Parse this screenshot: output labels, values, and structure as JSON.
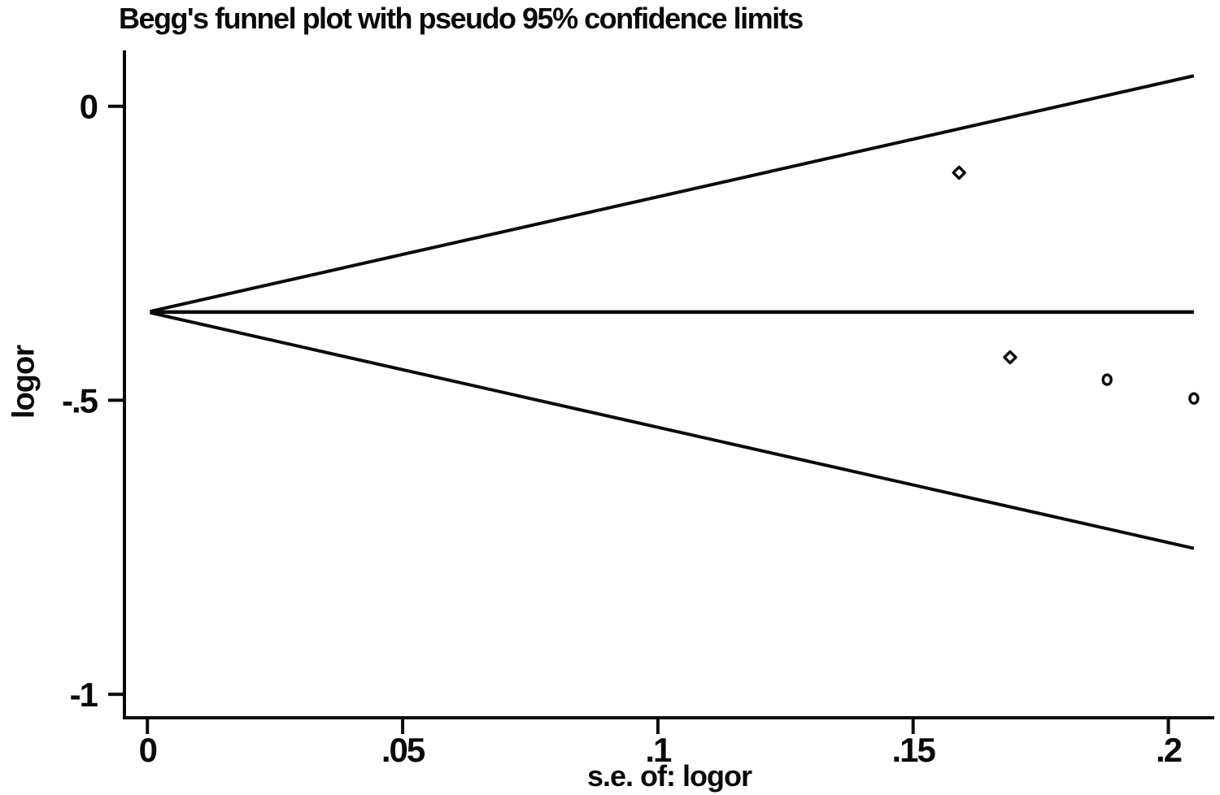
{
  "colors": {
    "foreground": "#0a0a0a",
    "background": "#ffffff"
  },
  "chart_data": {
    "type": "scatter",
    "title": "Begg's funnel plot with pseudo 95% confidence limits",
    "xlabel": "s.e. of: logor",
    "ylabel": "logor",
    "xlim": [
      -0.0045,
      0.209
    ],
    "ylim": [
      -1.04,
      0.095
    ],
    "x_ticks": [
      0,
      0.05,
      0.1,
      0.15,
      0.2
    ],
    "x_tick_labels": [
      "0",
      ".05",
      ".1",
      ".15",
      ".2"
    ],
    "y_ticks": [
      0,
      -0.5,
      -1
    ],
    "y_tick_labels": [
      "0",
      "-.5",
      "-1"
    ],
    "grid": false,
    "legend": "none",
    "pooled_estimate_logor": -0.35,
    "funnel": {
      "center": -0.35,
      "multiplier": 1.96,
      "se_start": 0.0005,
      "se_end": 0.205,
      "upper_at_end": 0.052,
      "lower_at_end": -0.752
    },
    "points": [
      {
        "se": 0.159,
        "logor": -0.113,
        "marker": "diamond"
      },
      {
        "se": 0.169,
        "logor": -0.427,
        "marker": "diamond"
      },
      {
        "se": 0.188,
        "logor": -0.465,
        "marker": "circle"
      },
      {
        "se": 0.205,
        "logor": -0.497,
        "marker": "circle"
      }
    ]
  }
}
